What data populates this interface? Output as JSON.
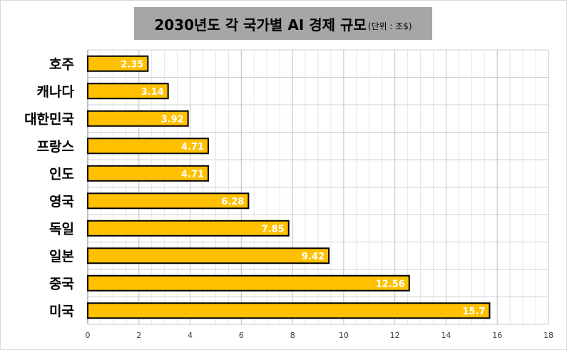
{
  "chart_data": {
    "type": "bar",
    "orientation": "horizontal",
    "title": "2030년도 각 국가별 AI 경제 규모",
    "subtitle": "(단위 : 조$)",
    "categories": [
      "호주",
      "캐나다",
      "대한민국",
      "프랑스",
      "인도",
      "영국",
      "독일",
      "일본",
      "중국",
      "미국"
    ],
    "values": [
      2.35,
      3.14,
      3.92,
      4.71,
      4.71,
      6.28,
      7.85,
      9.42,
      12.56,
      15.7
    ],
    "value_labels": [
      "2.35",
      "3.14",
      "3.92",
      "4.71",
      "4.71",
      "6.28",
      "7.85",
      "9.42",
      "12.56",
      "15.7"
    ],
    "xlim": [
      0,
      18
    ],
    "x_ticks": [
      0,
      2,
      4,
      6,
      8,
      10,
      12,
      14,
      16,
      18
    ],
    "grid": "on",
    "bar_color": "#ffc000",
    "bar_border_color": "#000000",
    "title_background": "#a6a6a6",
    "value_label_color": "#ffffff"
  }
}
